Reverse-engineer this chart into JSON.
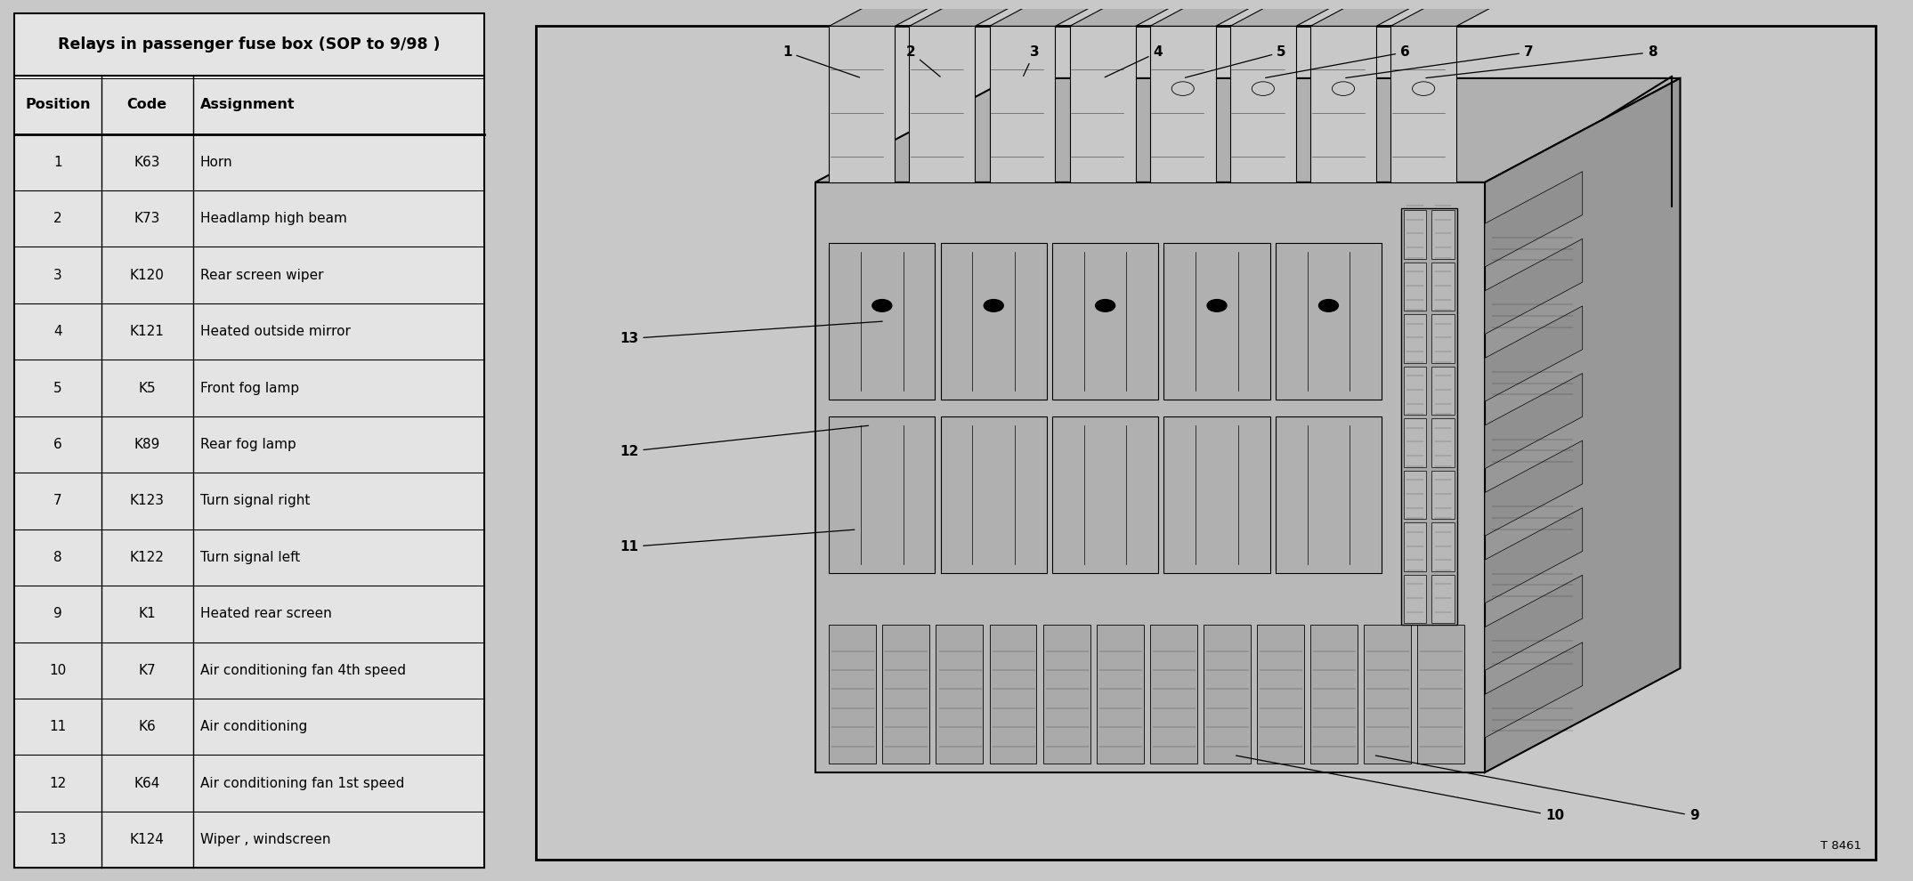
{
  "title": "Relays in passenger fuse box (SOP to 9/98 )",
  "col_headers": [
    "Position",
    "Code",
    "Assignment"
  ],
  "rows": [
    [
      "1",
      "K63",
      "Horn"
    ],
    [
      "2",
      "K73",
      "Headlamp high beam"
    ],
    [
      "3",
      "K120",
      "Rear screen wiper"
    ],
    [
      "4",
      "K121",
      "Heated outside mirror"
    ],
    [
      "5",
      "K5",
      "Front fog lamp"
    ],
    [
      "6",
      "K89",
      "Rear fog lamp"
    ],
    [
      "7",
      "K123",
      "Turn signal right"
    ],
    [
      "8",
      "K122",
      "Turn signal left"
    ],
    [
      "9",
      "K1",
      "Heated rear screen"
    ],
    [
      "10",
      "K7",
      "Air conditioning fan 4th speed"
    ],
    [
      "11",
      "K6",
      "Air conditioning"
    ],
    [
      "12",
      "K64",
      "Air conditioning fan 1st speed"
    ],
    [
      "13",
      "K124",
      "Wiper , windscreen"
    ]
  ],
  "diagram_ref": "T 8461",
  "bg_color": "#c8c8c8",
  "table_bg": "#e4e4e4",
  "text_color": "#000000",
  "title_fontsize": 12.5,
  "header_fontsize": 11.5,
  "cell_fontsize": 11,
  "diagram_fontsize": 11
}
